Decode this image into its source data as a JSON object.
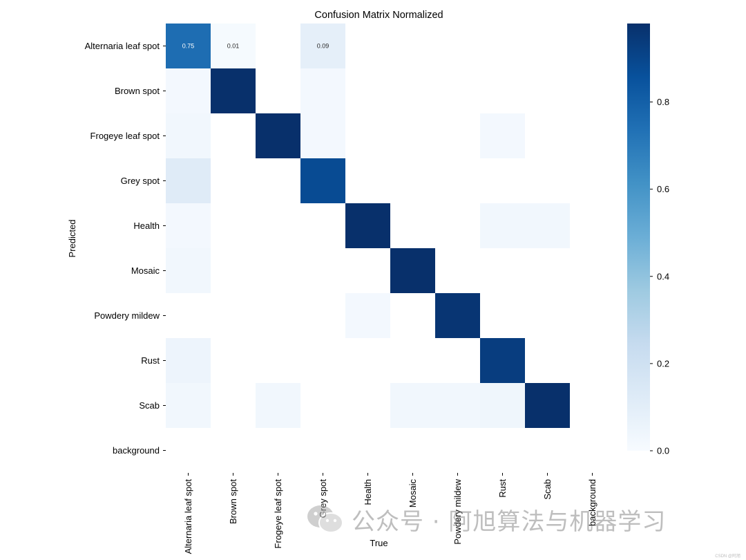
{
  "chart_data": {
    "type": "heatmap",
    "title": "Confusion Matrix Normalized",
    "xlabel": "True",
    "ylabel": "Predicted",
    "x_categories": [
      "Alternaria leaf spot",
      "Brown spot",
      "Frogeye leaf spot",
      "Grey spot",
      "Health",
      "Mosaic",
      "Powdery mildew",
      "Rust",
      "Scab",
      "background"
    ],
    "y_categories": [
      "Alternaria leaf spot",
      "Brown spot",
      "Frogeye leaf spot",
      "Grey spot",
      "Health",
      "Mosaic",
      "Powdery mildew",
      "Rust",
      "Scab",
      "background"
    ],
    "values": [
      [
        0.75,
        0.01,
        null,
        0.09,
        null,
        null,
        null,
        null,
        null,
        null
      ],
      [
        0.02,
        0.98,
        null,
        0.02,
        null,
        null,
        null,
        null,
        null,
        null
      ],
      [
        0.03,
        null,
        0.98,
        0.02,
        null,
        null,
        null,
        0.02,
        null,
        null
      ],
      [
        0.12,
        null,
        null,
        0.88,
        null,
        null,
        null,
        null,
        null,
        null
      ],
      [
        0.02,
        null,
        null,
        null,
        0.98,
        null,
        null,
        0.03,
        0.03,
        null
      ],
      [
        0.03,
        null,
        null,
        null,
        null,
        0.98,
        null,
        null,
        null,
        null
      ],
      [
        null,
        null,
        null,
        null,
        0.02,
        null,
        0.96,
        null,
        null,
        null
      ],
      [
        0.05,
        null,
        null,
        null,
        null,
        null,
        null,
        0.93,
        null,
        null
      ],
      [
        0.03,
        null,
        0.03,
        null,
        null,
        0.03,
        0.03,
        0.04,
        0.98,
        null
      ],
      [
        null,
        null,
        null,
        null,
        null,
        null,
        null,
        null,
        null,
        null
      ]
    ],
    "annotations": [
      {
        "row": 0,
        "col": 0,
        "text": "0.75"
      },
      {
        "row": 0,
        "col": 1,
        "text": "0.01"
      },
      {
        "row": 0,
        "col": 3,
        "text": "0.09"
      }
    ],
    "colormap": "Blues",
    "vmin": 0,
    "vmax": 0.98,
    "colorbar_ticks": [
      "0.0",
      "0.2",
      "0.4",
      "0.6",
      "0.8"
    ],
    "colorbar_tick_values": [
      0,
      0.2,
      0.4,
      0.6,
      0.8
    ]
  },
  "watermark": {
    "text": "公众号 · 阿旭算法与机器学习",
    "icon": "wechat-icon",
    "corner_text": "CSDN @阿旭"
  }
}
